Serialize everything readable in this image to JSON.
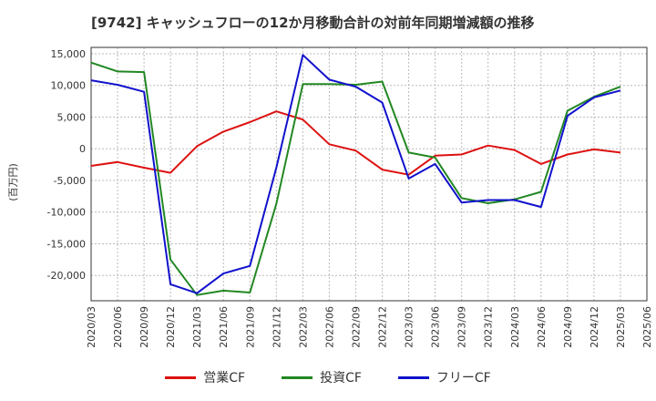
{
  "chart_data": {
    "type": "line",
    "title": "[9742]  キャッシュフローの12か月移動合計の対前年同期増減額の推移",
    "ylabel": "(百万円)",
    "xlabel": "",
    "ylim": [
      -24000,
      16000
    ],
    "yticks": [
      15000,
      10000,
      5000,
      0,
      -5000,
      -10000,
      -15000,
      -20000
    ],
    "ytick_labels": [
      "15,000",
      "10,000",
      "5,000",
      "0",
      "-5,000",
      "-10,000",
      "-15,000",
      "-20,000"
    ],
    "categories": [
      "2020/03",
      "2020/06",
      "2020/09",
      "2020/12",
      "2021/03",
      "2021/06",
      "2021/09",
      "2021/12",
      "2022/03",
      "2022/06",
      "2022/09",
      "2022/12",
      "2023/03",
      "2023/06",
      "2023/09",
      "2023/12",
      "2024/03",
      "2024/06",
      "2024/09",
      "2024/12",
      "2025/03",
      "2025/06"
    ],
    "series": [
      {
        "name": "営業CF",
        "color": "#dd1111",
        "values": [
          -2700,
          -2100,
          -3000,
          -3800,
          400,
          2700,
          4200,
          5900,
          4600,
          700,
          -300,
          -3300,
          -4100,
          -1100,
          -900,
          500,
          -200,
          -2400,
          -900,
          -100,
          -600,
          null
        ]
      },
      {
        "name": "投資CF",
        "color": "#228822",
        "values": [
          13600,
          12200,
          12100,
          -17500,
          -23100,
          -22400,
          -22700,
          -8700,
          10200,
          10200,
          10100,
          10600,
          -600,
          -1400,
          -7800,
          -8600,
          -8000,
          -6800,
          6000,
          8200,
          9800,
          null
        ]
      },
      {
        "name": "フリーCF",
        "color": "#1111cc",
        "values": [
          10800,
          10100,
          9000,
          -21400,
          -22800,
          -19700,
          -18500,
          -3000,
          14800,
          10900,
          9800,
          7300,
          -4700,
          -2400,
          -8500,
          -8100,
          -8100,
          -9200,
          5200,
          8100,
          9200,
          null
        ]
      }
    ],
    "grid": true,
    "legend": "bottom"
  }
}
